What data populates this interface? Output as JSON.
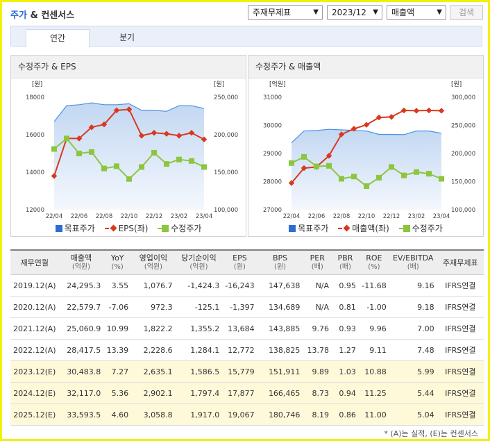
{
  "header": {
    "title_accent": "주가",
    "title_rest": "& 컨센서스",
    "select_statement": "주재무제표",
    "select_period": "2023/12",
    "select_metric": "매출액",
    "search_button": "검색"
  },
  "tabs": [
    {
      "label": "연간",
      "active": true
    },
    {
      "label": "분기",
      "active": false
    }
  ],
  "chart_data": [
    {
      "type": "line",
      "title": "수정주가 & EPS",
      "left_unit": "[원]",
      "right_unit": "[원]",
      "categories": [
        "22/04",
        "22/05",
        "22/06",
        "22/07",
        "22/08",
        "22/09",
        "22/10",
        "22/11",
        "22/12",
        "23/01",
        "23/02",
        "23/03",
        "23/04"
      ],
      "x_tick_labels": [
        "22/04",
        "22/06",
        "22/08",
        "22/10",
        "22/12",
        "23/02",
        "23/04"
      ],
      "left_axis": {
        "ylim": [
          12000,
          18000
        ],
        "ticks": [
          "12000",
          "14000",
          "16000",
          "18000"
        ]
      },
      "right_axis": {
        "ylim": [
          100000,
          250000
        ],
        "ticks": [
          "100,000",
          "150,000",
          "200,000",
          "250,000"
        ]
      },
      "series": [
        {
          "name": "목표주가",
          "axis": "left",
          "kind": "area",
          "color": "#4a90e2",
          "values": [
            16700,
            17550,
            17600,
            17700,
            17600,
            17600,
            17650,
            17300,
            17300,
            17250,
            17550,
            17550,
            17400
          ]
        },
        {
          "name": "EPS(좌)",
          "axis": "left",
          "kind": "line",
          "color": "#d9381e",
          "values": [
            13800,
            15800,
            15800,
            16400,
            16550,
            17300,
            17350,
            15950,
            16100,
            16050,
            15950,
            16100,
            15750
          ]
        },
        {
          "name": "수정주가",
          "axis": "right",
          "kind": "line",
          "color": "#8cc63f",
          "values": [
            181000,
            195000,
            175000,
            177000,
            155000,
            158000,
            141000,
            157000,
            176000,
            161000,
            167000,
            165000,
            157000
          ]
        }
      ],
      "legend": [
        "목표주가",
        "EPS(좌)",
        "수정주가"
      ]
    },
    {
      "type": "line",
      "title": "수정주가 & 매출액",
      "left_unit": "[억원]",
      "right_unit": "[원]",
      "categories": [
        "22/04",
        "22/05",
        "22/06",
        "22/07",
        "22/08",
        "22/09",
        "22/10",
        "22/11",
        "22/12",
        "23/01",
        "23/02",
        "23/03",
        "23/04"
      ],
      "x_tick_labels": [
        "22/04",
        "22/06",
        "22/08",
        "22/10",
        "22/12",
        "23/02",
        "23/04"
      ],
      "left_axis": {
        "ylim": [
          27000,
          31000
        ],
        "ticks": [
          "27000",
          "28000",
          "29000",
          "30000",
          "31000"
        ]
      },
      "right_axis": {
        "ylim": [
          100000,
          300000
        ],
        "ticks": [
          "100,000",
          "150,000",
          "200,000",
          "250,000",
          "300,000"
        ]
      },
      "series": [
        {
          "name": "목표주가",
          "axis": "left",
          "kind": "area",
          "color": "#4a90e2",
          "values": [
            29380,
            29800,
            29820,
            29860,
            29840,
            29820,
            29800,
            29680,
            29680,
            29670,
            29800,
            29800,
            29720
          ]
        },
        {
          "name": "매출액(좌)",
          "axis": "left",
          "kind": "line",
          "color": "#d9381e",
          "values": [
            27950,
            28480,
            28520,
            28920,
            29680,
            29880,
            30020,
            30280,
            30300,
            30530,
            30520,
            30530,
            30520
          ]
        },
        {
          "name": "수정주가",
          "axis": "right",
          "kind": "line",
          "color": "#8cc63f",
          "values": [
            183000,
            194000,
            177000,
            178000,
            155000,
            159000,
            142000,
            157000,
            176000,
            161000,
            167000,
            164000,
            155000
          ]
        }
      ],
      "legend": [
        "목표주가",
        "매출액(좌)",
        "수정주가"
      ]
    }
  ],
  "table": {
    "headers": [
      {
        "label": "재무연월",
        "sub": ""
      },
      {
        "label": "매출액",
        "sub": "(억원)"
      },
      {
        "label": "YoY",
        "sub": "(%)"
      },
      {
        "label": "영업이익",
        "sub": "(억원)"
      },
      {
        "label": "당기순이익",
        "sub": "(억원)"
      },
      {
        "label": "EPS",
        "sub": "(원)"
      },
      {
        "label": "BPS",
        "sub": "(원)"
      },
      {
        "label": "PER",
        "sub": "(배)"
      },
      {
        "label": "PBR",
        "sub": "(배)"
      },
      {
        "label": "ROE",
        "sub": "(%)"
      },
      {
        "label": "EV/EBITDA",
        "sub": "(배)"
      },
      {
        "label": "주재무제표",
        "sub": ""
      }
    ],
    "rows": [
      {
        "estimate": false,
        "cells": [
          "2019.12(A)",
          "24,295.3",
          "3.55",
          "1,076.7",
          "-1,424.3",
          "-16,243",
          "147,638",
          "N/A",
          "0.95",
          "-11.68",
          "9.16",
          "IFRS연결"
        ]
      },
      {
        "estimate": false,
        "cells": [
          "2020.12(A)",
          "22,579.7",
          "-7.06",
          "972.3",
          "-125.1",
          "-1,397",
          "134,689",
          "N/A",
          "0.81",
          "-1.00",
          "9.18",
          "IFRS연결"
        ]
      },
      {
        "estimate": false,
        "cells": [
          "2021.12(A)",
          "25,060.9",
          "10.99",
          "1,822.2",
          "1,355.2",
          "13,684",
          "143,885",
          "9.76",
          "0.93",
          "9.96",
          "7.00",
          "IFRS연결"
        ]
      },
      {
        "estimate": false,
        "cells": [
          "2022.12(A)",
          "28,417.5",
          "13.39",
          "2,228.6",
          "1,284.1",
          "12,772",
          "138,825",
          "13.78",
          "1.27",
          "9.11",
          "7.48",
          "IFRS연결"
        ]
      },
      {
        "estimate": true,
        "cells": [
          "2023.12(E)",
          "30,483.8",
          "7.27",
          "2,635.1",
          "1,586.5",
          "15,779",
          "151,911",
          "9.89",
          "1.03",
          "10.88",
          "5.99",
          "IFRS연결"
        ]
      },
      {
        "estimate": true,
        "cells": [
          "2024.12(E)",
          "32,117.0",
          "5.36",
          "2,902.1",
          "1,797.4",
          "17,877",
          "166,465",
          "8.73",
          "0.94",
          "11.25",
          "5.44",
          "IFRS연결"
        ]
      },
      {
        "estimate": true,
        "cells": [
          "2025.12(E)",
          "33,593.5",
          "4.60",
          "3,058.8",
          "1,917.0",
          "19,067",
          "180,746",
          "8.19",
          "0.86",
          "11.00",
          "5.04",
          "IFRS연결"
        ]
      }
    ]
  },
  "footnote": "* (A)는 실적, (E)는 컨센서스"
}
